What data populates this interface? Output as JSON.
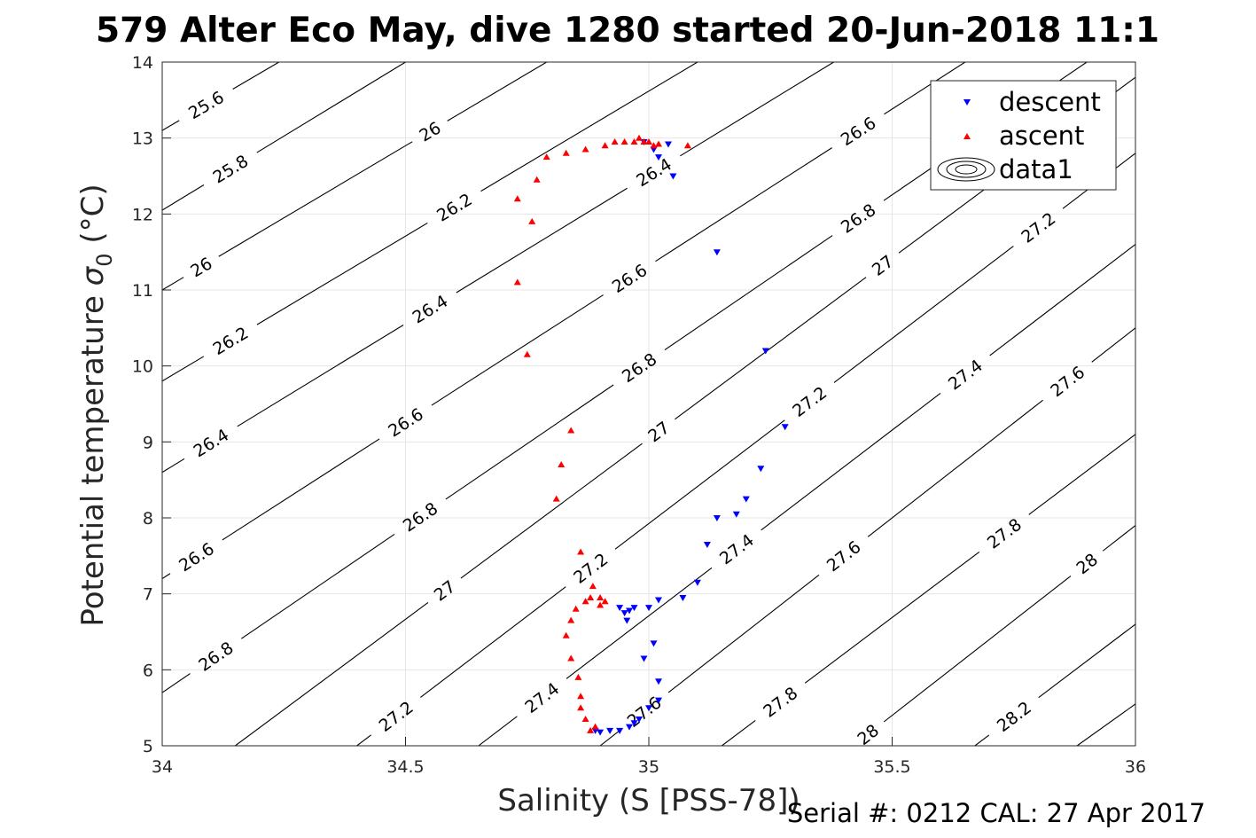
{
  "chart_data": {
    "type": "scatter",
    "title": "579 Alter Eco May, dive 1280 started 20-Jun-2018 11:1",
    "xlabel": "Salinity (S [PSS-78])",
    "ylabel": "Potential temperature",
    "ylabel_symbol": "σ",
    "ylabel_subscript": "0",
    "ylabel_unit": " (°C)",
    "footer": "Serial #: 0212  CAL: 27 Apr 2017",
    "xlim": [
      34,
      36
    ],
    "ylim": [
      5,
      14
    ],
    "xticks": [
      "34",
      "34.5",
      "35",
      "35.5",
      "36"
    ],
    "xtick_values": [
      34,
      34.5,
      35,
      35.5,
      36
    ],
    "yticks": [
      "5",
      "6",
      "7",
      "8",
      "9",
      "10",
      "11",
      "12",
      "13",
      "14"
    ],
    "ytick_values": [
      5,
      6,
      7,
      8,
      9,
      10,
      11,
      12,
      13,
      14
    ],
    "grid": true,
    "legend_position": "top-right",
    "legend": [
      {
        "label": "descent",
        "marker": "triangle-down",
        "color": "#0000ff"
      },
      {
        "label": "ascent",
        "marker": "triangle-up",
        "color": "#ff0000"
      },
      {
        "label": "data1",
        "marker": "contour",
        "color": "#000000"
      }
    ],
    "contours": [
      {
        "level": "25.6",
        "line": [
          [
            34,
            13.1
          ],
          [
            34.24,
            14
          ]
        ],
        "labels": [
          [
            34.09,
            13.45
          ]
        ]
      },
      {
        "level": "25.8",
        "line": [
          [
            34,
            12.05
          ],
          [
            34.5,
            14
          ]
        ],
        "labels": [
          [
            34.14,
            12.6
          ]
        ]
      },
      {
        "level": "26",
        "line": [
          [
            34,
            11
          ],
          [
            34.79,
            14
          ]
        ],
        "labels": [
          [
            34.08,
            11.3
          ],
          [
            34.55,
            13.2
          ]
        ]
      },
      {
        "level": "26.2",
        "line": [
          [
            34,
            9.8
          ],
          [
            35.1,
            14
          ]
        ],
        "labels": [
          [
            34.14,
            10.45
          ],
          [
            34.6,
            12.4
          ]
        ]
      },
      {
        "level": "26.4",
        "line": [
          [
            34,
            8.6
          ],
          [
            35.38,
            14
          ]
        ],
        "labels": [
          [
            34.1,
            9.1
          ],
          [
            34.55,
            11.15
          ],
          [
            35.01,
            13
          ]
        ]
      },
      {
        "level": "26.6",
        "line": [
          [
            34,
            7.2
          ],
          [
            35.65,
            14
          ]
        ],
        "labels": [
          [
            34.07,
            7.65
          ],
          [
            34.5,
            9.75
          ],
          [
            34.96,
            11.5
          ],
          [
            35.43,
            13.6
          ]
        ]
      },
      {
        "level": "26.8",
        "line": [
          [
            34,
            5.7
          ],
          [
            35.9,
            14
          ]
        ],
        "labels": [
          [
            34.11,
            6.45
          ],
          [
            34.53,
            8.5
          ],
          [
            34.98,
            10.35
          ],
          [
            35.43,
            12.3
          ]
        ]
      },
      {
        "level": "27",
        "line": [
          [
            34.15,
            5
          ],
          [
            36,
            13.8
          ]
        ],
        "labels": [
          [
            34.58,
            7.6
          ],
          [
            35.02,
            9.5
          ],
          [
            35.48,
            11.55
          ]
        ]
      },
      {
        "level": "27.2",
        "line": [
          [
            34.4,
            5
          ],
          [
            36,
            12.8
          ]
        ],
        "labels": [
          [
            34.48,
            5.55
          ],
          [
            34.88,
            7.3
          ],
          [
            35.33,
            9.5
          ],
          [
            35.8,
            11.95
          ]
        ]
      },
      {
        "level": "27.4",
        "line": [
          [
            34.65,
            5
          ],
          [
            36,
            11.6
          ]
        ],
        "labels": [
          [
            34.78,
            5.8
          ],
          [
            35.18,
            8.15
          ],
          [
            35.65,
            10.2
          ]
        ]
      },
      {
        "level": "27.6",
        "line": [
          [
            34.9,
            5
          ],
          [
            36,
            10.5
          ]
        ],
        "labels": [
          [
            34.99,
            5.55
          ],
          [
            35.4,
            7.45
          ],
          [
            35.86,
            9.8
          ]
        ]
      },
      {
        "level": "27.8",
        "line": [
          [
            35.15,
            5
          ],
          [
            36,
            9.1
          ]
        ],
        "labels": [
          [
            35.27,
            5.7
          ],
          [
            35.73,
            7.95
          ]
        ]
      },
      {
        "level": "28",
        "line": [
          [
            35.42,
            5
          ],
          [
            36,
            7.9
          ]
        ],
        "labels": [
          [
            35.45,
            5.35
          ],
          [
            35.9,
            7.55
          ]
        ]
      },
      {
        "level": "28.2",
        "line": [
          [
            35.67,
            5
          ],
          [
            36,
            6.6
          ]
        ],
        "labels": [
          [
            35.75,
            5.6
          ]
        ]
      },
      {
        "level": "",
        "line": [
          [
            35.88,
            5
          ],
          [
            36,
            5.55
          ]
        ],
        "labels": []
      }
    ],
    "series": [
      {
        "name": "descent",
        "marker": "triangle-down",
        "color": "#0000ff",
        "points": [
          [
            34.99,
            12.95
          ],
          [
            35.01,
            12.85
          ],
          [
            35.02,
            12.75
          ],
          [
            35.05,
            12.5
          ],
          [
            35.04,
            12.92
          ],
          [
            35.14,
            11.5
          ],
          [
            35.24,
            10.2
          ],
          [
            35.28,
            9.2
          ],
          [
            35.23,
            8.65
          ],
          [
            35.2,
            8.25
          ],
          [
            35.18,
            8.05
          ],
          [
            35.14,
            8.0
          ],
          [
            35.12,
            7.65
          ],
          [
            35.1,
            7.15
          ],
          [
            35.07,
            6.95
          ],
          [
            35.02,
            6.92
          ],
          [
            35.0,
            6.82
          ],
          [
            34.97,
            6.82
          ],
          [
            34.96,
            6.78
          ],
          [
            34.95,
            6.75
          ],
          [
            34.94,
            6.82
          ],
          [
            34.955,
            6.65
          ],
          [
            35.01,
            6.35
          ],
          [
            34.99,
            6.15
          ],
          [
            35.02,
            5.85
          ],
          [
            35.02,
            5.6
          ],
          [
            35.0,
            5.5
          ],
          [
            34.98,
            5.35
          ],
          [
            34.97,
            5.3
          ],
          [
            34.96,
            5.25
          ],
          [
            34.94,
            5.2
          ],
          [
            34.92,
            5.2
          ],
          [
            34.9,
            5.18
          ],
          [
            34.89,
            5.2
          ]
        ]
      },
      {
        "name": "ascent",
        "marker": "triangle-up",
        "color": "#ff0000",
        "points": [
          [
            34.88,
            5.2
          ],
          [
            34.89,
            5.25
          ],
          [
            34.87,
            5.35
          ],
          [
            34.86,
            5.5
          ],
          [
            34.86,
            5.65
          ],
          [
            34.855,
            5.9
          ],
          [
            34.84,
            6.15
          ],
          [
            34.83,
            6.45
          ],
          [
            34.84,
            6.65
          ],
          [
            34.85,
            6.8
          ],
          [
            34.87,
            6.9
          ],
          [
            34.88,
            6.95
          ],
          [
            34.885,
            7.1
          ],
          [
            34.9,
            6.85
          ],
          [
            34.91,
            6.9
          ],
          [
            34.9,
            6.95
          ],
          [
            34.86,
            7.55
          ],
          [
            34.81,
            8.25
          ],
          [
            34.82,
            8.7
          ],
          [
            34.84,
            9.15
          ],
          [
            34.75,
            10.15
          ],
          [
            34.73,
            11.1
          ],
          [
            34.76,
            11.9
          ],
          [
            34.73,
            12.2
          ],
          [
            34.77,
            12.45
          ],
          [
            34.79,
            12.75
          ],
          [
            34.83,
            12.8
          ],
          [
            34.87,
            12.85
          ],
          [
            34.91,
            12.9
          ],
          [
            34.93,
            12.95
          ],
          [
            34.95,
            12.95
          ],
          [
            34.97,
            12.95
          ],
          [
            34.98,
            13.0
          ],
          [
            34.99,
            12.95
          ],
          [
            35.0,
            12.95
          ],
          [
            35.02,
            12.92
          ],
          [
            35.08,
            12.9
          ],
          [
            35.01,
            12.9
          ]
        ]
      }
    ]
  }
}
